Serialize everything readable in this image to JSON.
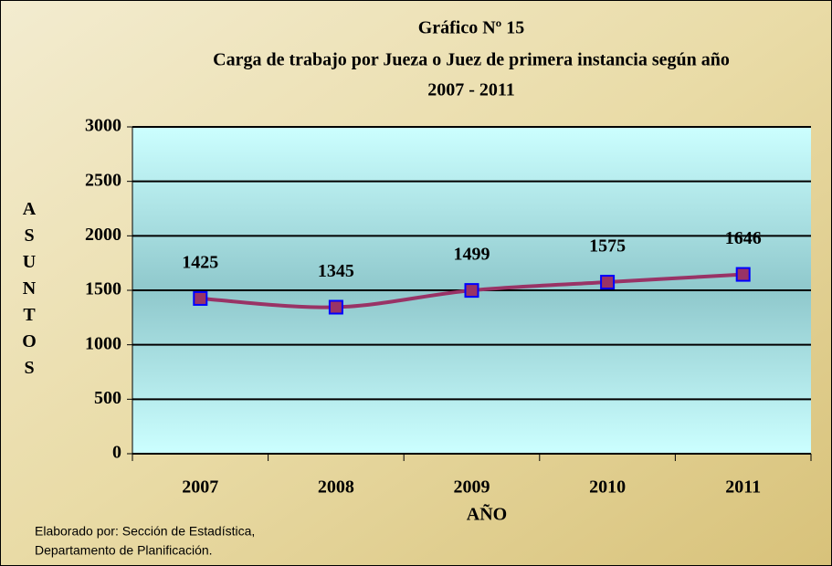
{
  "chart_data": {
    "type": "line",
    "title": [
      "Gráfico Nº 15",
      "Carga de trabajo por Jueza o Juez de primera instancia según año",
      "2007 - 2011"
    ],
    "xlabel": "AÑO",
    "ylabel": "ASUNTOS",
    "categories": [
      "2007",
      "2008",
      "2009",
      "2010",
      "2011"
    ],
    "series": [
      {
        "name": "Asuntos",
        "color": "#993366",
        "values": [
          1425,
          1345,
          1499,
          1575,
          1646
        ]
      }
    ],
    "ylim": [
      0,
      3000
    ],
    "yticks": [
      0,
      500,
      1000,
      1500,
      2000,
      2500,
      3000
    ],
    "grid": true,
    "footnote": [
      "Elaborado por: Sección de Estadística,",
      "Departamento de Planificación."
    ]
  }
}
